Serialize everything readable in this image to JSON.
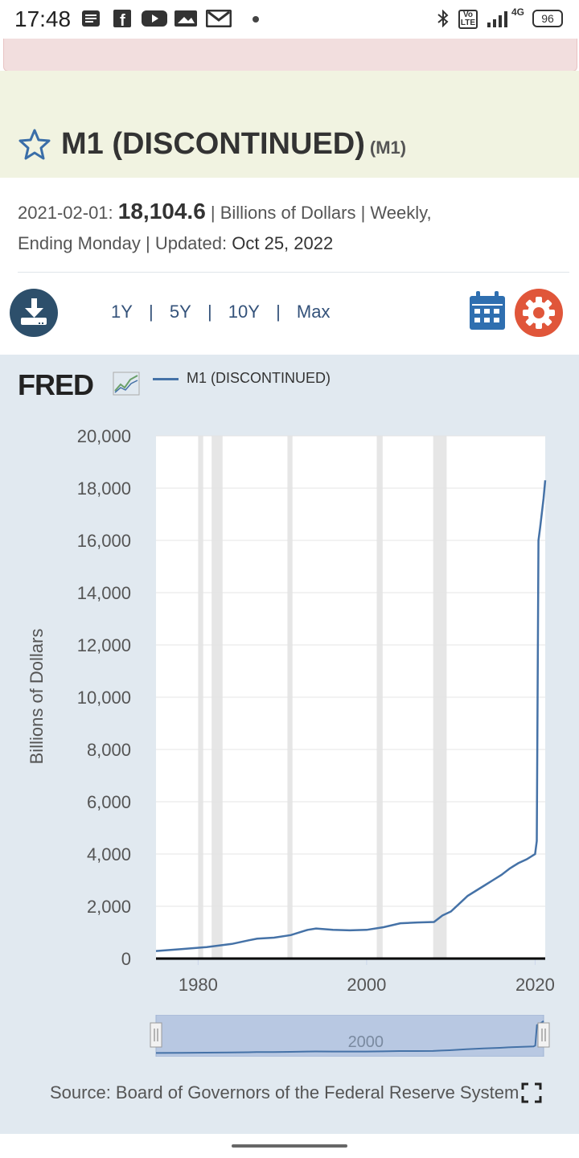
{
  "status_bar": {
    "time": "17:48",
    "battery": "96",
    "network": "4G",
    "volte": "Vo LTE",
    "icons": [
      "notes-icon",
      "facebook-icon",
      "youtube-icon",
      "gallery-icon",
      "gmail-icon",
      "dot-icon",
      "bluetooth-icon",
      "volte-icon",
      "signal-icon",
      "battery-icon"
    ]
  },
  "series": {
    "title": "M1 (DISCONTINUED)",
    "code": "(M1)",
    "date": "2021-02-01:",
    "value": "18,104.6",
    "units_text": "| Billions of Dollars | Weekly,",
    "ending_text": "Ending Monday | Updated:",
    "updated": "Oct 25, 2022"
  },
  "toolbar": {
    "ranges": [
      "1Y",
      "|",
      "5Y",
      "|",
      "10Y",
      "|",
      "Max"
    ],
    "icons": [
      "download-icon",
      "calendar-icon",
      "settings-icon"
    ]
  },
  "logo_text": "FRED",
  "navigator_label": "2000",
  "source": "Source: Board of Governors of the Federal Reserve System",
  "colors": {
    "line": "#4572a7",
    "panel": "#e1e9f0",
    "title_band": "#f1f3e1",
    "recession": "#e6e6e6",
    "settings": "#e0563a",
    "download": "#2d4f6b"
  },
  "chart_data": {
    "type": "line",
    "ylabel": "Billions of Dollars",
    "legend": "M1 (DISCONTINUED)",
    "ylim": [
      0,
      20000
    ],
    "xlim": [
      1975,
      2021.2
    ],
    "yticks": [
      "20,000",
      "18,000",
      "16,000",
      "14,000",
      "12,000",
      "10,000",
      "8,000",
      "6,000",
      "4,000",
      "2,000",
      "0"
    ],
    "xticks": [
      "1980",
      "2000",
      "2020"
    ],
    "recessions": [
      [
        1980.0,
        1980.6
      ],
      [
        1981.6,
        1982.9
      ],
      [
        1990.6,
        1991.2
      ],
      [
        2001.2,
        2001.9
      ],
      [
        2007.9,
        2009.5
      ]
    ],
    "series": [
      {
        "name": "M1 (DISCONTINUED)",
        "x": [
          1975,
          1978,
          1981,
          1984,
          1986,
          1987,
          1989,
          1991,
          1993,
          1994,
          1996,
          1998,
          2000,
          2002,
          2004,
          2006,
          2008,
          2009,
          2010,
          2011,
          2012,
          2013,
          2014,
          2015,
          2016,
          2017,
          2018,
          2019,
          2020.0,
          2020.2,
          2020.4,
          2020.6,
          2021.0,
          2021.2
        ],
        "values": [
          290,
          360,
          440,
          560,
          700,
          760,
          800,
          900,
          1100,
          1150,
          1100,
          1080,
          1100,
          1200,
          1350,
          1380,
          1400,
          1650,
          1800,
          2100,
          2400,
          2600,
          2800,
          3000,
          3200,
          3450,
          3650,
          3800,
          4000,
          4500,
          16000,
          16500,
          17600,
          18300
        ]
      }
    ]
  }
}
